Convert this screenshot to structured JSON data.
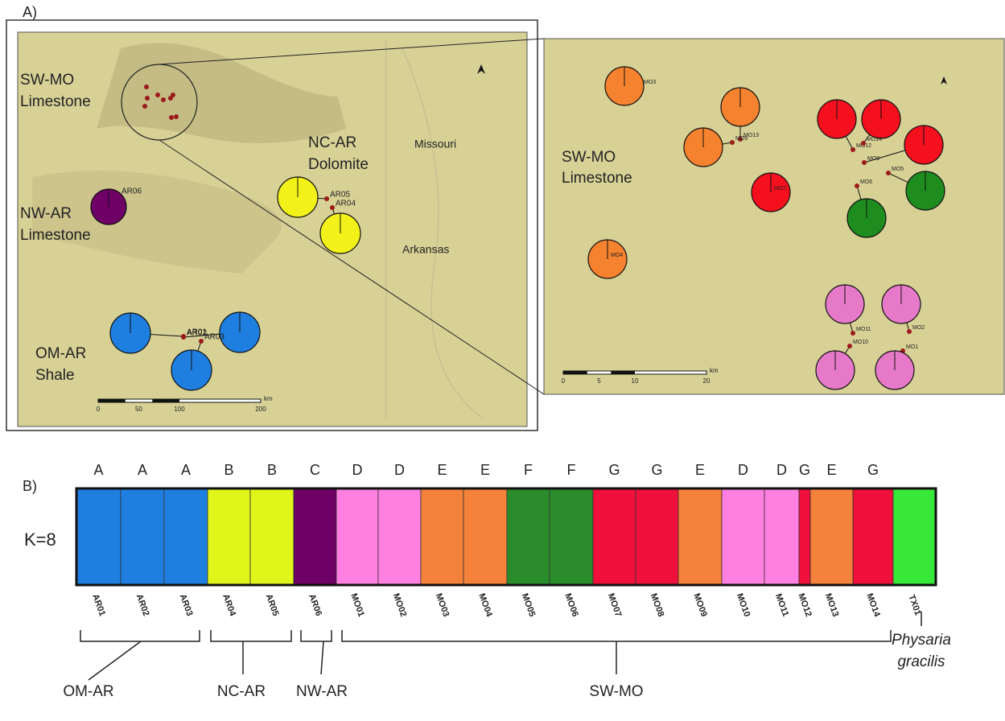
{
  "panel_a": {
    "label": "A)",
    "left_map": {
      "regions": [
        {
          "lines": [
            "SW-MO",
            "Limestone"
          ]
        },
        {
          "lines": [
            "NC-AR",
            "Dolomite"
          ]
        },
        {
          "lines": [
            "NW-AR",
            "Limestone"
          ]
        },
        {
          "lines": [
            "OM-AR",
            "Shale"
          ]
        }
      ],
      "states": [
        "Missouri",
        "Arkansas"
      ],
      "sites": [
        {
          "label": "AR06",
          "color": "#6e0066"
        },
        {
          "label": "AR05",
          "color": "#f2f21a"
        },
        {
          "label": "AR04",
          "color": "#f2f21a"
        },
        {
          "label": "AR01",
          "color": "#1f7fe0"
        },
        {
          "label": "AR02",
          "color": "#1f7fe0"
        },
        {
          "label": "AR03",
          "color": "#1f7fe0"
        }
      ],
      "scale": [
        "0",
        "50",
        "100",
        "200",
        "km"
      ]
    },
    "right_map": {
      "region": [
        "SW-MO",
        "Limestone"
      ],
      "sites": [
        {
          "label": "MO3",
          "color": "#f5822e"
        },
        {
          "label": "MO13",
          "color": "#f5822e"
        },
        {
          "label": "MO9",
          "color": "#f5822e"
        },
        {
          "label": "MO12",
          "color": "#f5101e"
        },
        {
          "label": "MO14",
          "color": "#f5101e"
        },
        {
          "label": "MO8",
          "color": "#f5101e"
        },
        {
          "label": "MO7",
          "color": "#f5101e"
        },
        {
          "label": "MO5",
          "color": "#1e8c1e"
        },
        {
          "label": "MO6",
          "color": "#1e8c1e"
        },
        {
          "label": "MO4",
          "color": "#f5822e"
        },
        {
          "label": "MO11",
          "color": "#e67ac8"
        },
        {
          "label": "MO2",
          "color": "#e67ac8"
        },
        {
          "label": "MO10",
          "color": "#e67ac8"
        },
        {
          "label": "MO1",
          "color": "#e67ac8"
        }
      ],
      "scale": [
        "0",
        "5",
        "10",
        "20",
        "km"
      ]
    }
  },
  "panel_b": {
    "label": "B)",
    "k_label": "K=8",
    "populations": [
      {
        "name": "AR01",
        "cluster": "A",
        "color": "#1f7fe0"
      },
      {
        "name": "AR02",
        "cluster": "A",
        "color": "#1f7fe0"
      },
      {
        "name": "AR03",
        "cluster": "A",
        "color": "#1f7fe0"
      },
      {
        "name": "AR04",
        "cluster": "B",
        "color": "#e0f51a"
      },
      {
        "name": "AR05",
        "cluster": "B",
        "color": "#e0f51a"
      },
      {
        "name": "AR06",
        "cluster": "C",
        "color": "#6e0066"
      },
      {
        "name": "MO01",
        "cluster": "D",
        "color": "#ff80e0"
      },
      {
        "name": "MO02",
        "cluster": "D",
        "color": "#ff80e0"
      },
      {
        "name": "MO03",
        "cluster": "E",
        "color": "#f5823a"
      },
      {
        "name": "MO04",
        "cluster": "E",
        "color": "#f5823a"
      },
      {
        "name": "MO05",
        "cluster": "F",
        "color": "#2b8c2b"
      },
      {
        "name": "MO06",
        "cluster": "F",
        "color": "#2b8c2b"
      },
      {
        "name": "MO07",
        "cluster": "G",
        "color": "#f0103c"
      },
      {
        "name": "MO08",
        "cluster": "G",
        "color": "#f0103c"
      },
      {
        "name": "MO09",
        "cluster": "E",
        "color": "#f5823a"
      },
      {
        "name": "MO10",
        "cluster": "D",
        "color": "#ff80e0"
      },
      {
        "name": "MO11",
        "cluster": "D",
        "color": "#ff80e0"
      },
      {
        "name": "MO12",
        "cluster": "G",
        "color": "#f0103c"
      },
      {
        "name": "MO13",
        "cluster": "E",
        "color": "#f5823a"
      },
      {
        "name": "MO14",
        "cluster": "G",
        "color": "#f0103c"
      },
      {
        "name": "TX01",
        "cluster": null,
        "color": "#38e838"
      }
    ],
    "groups": [
      {
        "lines": [
          "OM-AR"
        ]
      },
      {
        "lines": [
          "NC-AR"
        ]
      },
      {
        "lines": [
          "NW-AR"
        ]
      },
      {
        "lines": [
          "SW-MO"
        ]
      },
      {
        "lines": [
          "Physaria",
          "gracilis"
        ]
      }
    ]
  }
}
